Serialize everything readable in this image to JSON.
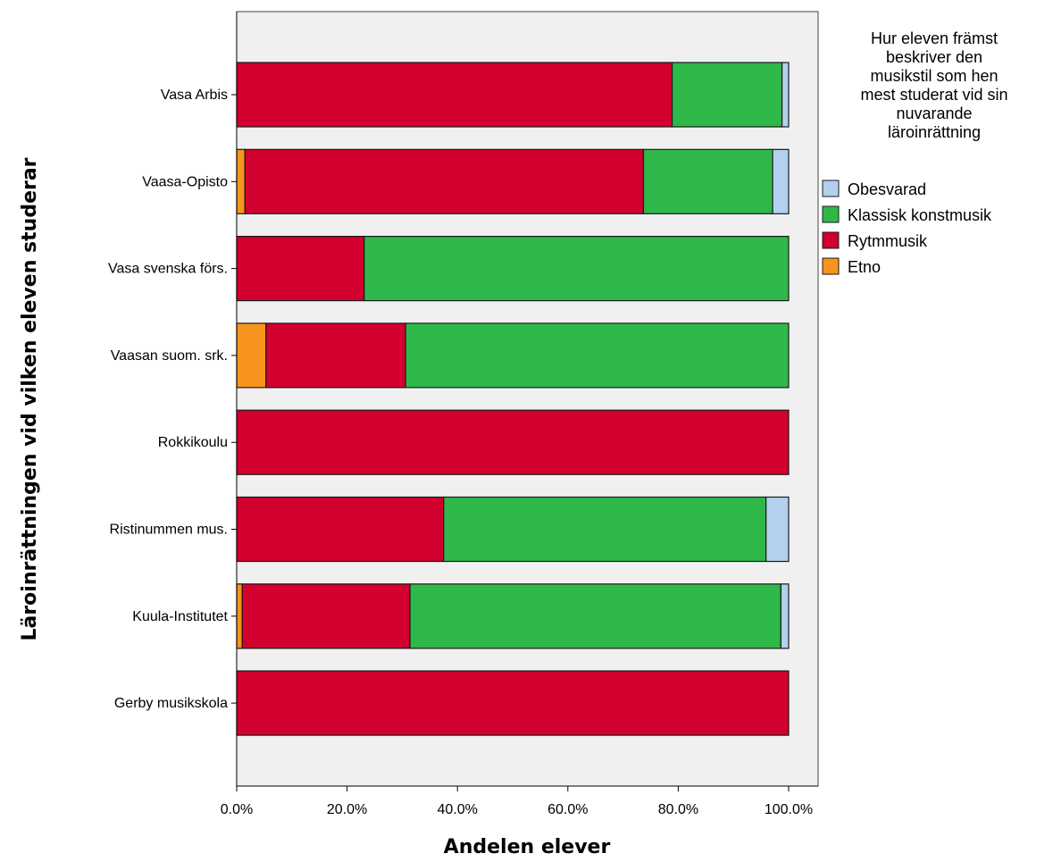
{
  "chart_data": {
    "type": "bar",
    "orientation": "horizontal",
    "stacked": true,
    "xlabel": "Andelen elever",
    "ylabel": "Läroinrättningen vid vilken eleven studerar",
    "xlim": [
      0,
      100
    ],
    "xticks": [
      "0.0%",
      "20.0%",
      "40.0%",
      "60.0%",
      "80.0%",
      "100.0%"
    ],
    "categories": [
      "Vasa Arbis",
      "Vaasa-Opisto",
      "Vasa svenska förs.",
      "Vaasan suom. srk.",
      "Rokkikoulu",
      "Ristinummen mus.",
      "Kuula-Institutet",
      "Gerby musikskola"
    ],
    "series": [
      {
        "name": "Etno",
        "color": "#f7941d",
        "values": [
          0,
          1.5,
          0,
          5.3,
          0,
          0,
          1.0,
          0
        ]
      },
      {
        "name": "Rytmmusik",
        "color": "#d2002e",
        "values": [
          78.9,
          72.2,
          23.1,
          25.3,
          100,
          37.5,
          30.4,
          100
        ]
      },
      {
        "name": "Klassisk konstmusik",
        "color": "#2eb84a",
        "values": [
          19.9,
          23.4,
          76.9,
          69.4,
          0,
          58.4,
          67.2,
          0
        ]
      },
      {
        "name": "Obesvarad",
        "color": "#b1d1ef",
        "values": [
          1.2,
          2.9,
          0,
          0,
          0,
          4.1,
          1.4,
          0
        ]
      }
    ],
    "legend": {
      "title_lines": [
        "Hur eleven främst",
        "beskriver den",
        "musikstil som hen",
        "mest studerat vid sin",
        "nuvarande",
        "läroinrättning"
      ],
      "placement": "right",
      "order": [
        "Obesvarad",
        "Klassisk konstmusik",
        "Rytmmusik",
        "Etno"
      ]
    },
    "plot_background": "#f0f0f0"
  }
}
